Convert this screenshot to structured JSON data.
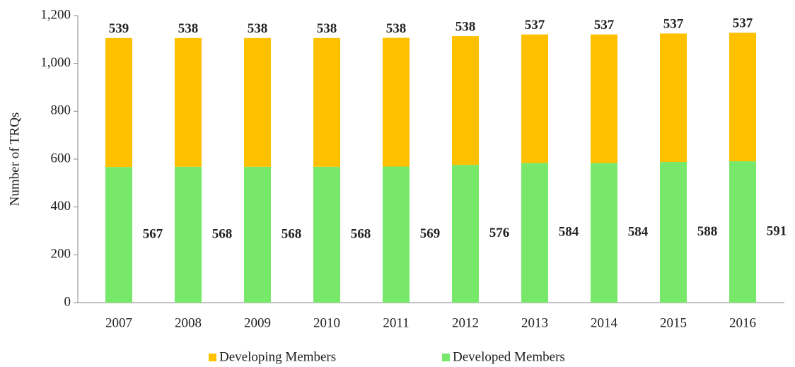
{
  "chart_data": {
    "type": "stacked_bar",
    "y_label": "Number of TRQs",
    "categories": [
      "2007",
      "2008",
      "2009",
      "2010",
      "2011",
      "2012",
      "2013",
      "2014",
      "2015",
      "2016"
    ],
    "series": [
      {
        "name": "Developed Members",
        "color": "#78e86b",
        "values": [
          567,
          568,
          568,
          568,
          569,
          576,
          584,
          584,
          588,
          591
        ]
      },
      {
        "name": "Developing Members",
        "color": "#ffc000",
        "values": [
          539,
          538,
          538,
          538,
          538,
          538,
          537,
          537,
          537,
          537
        ]
      }
    ],
    "ylim": [
      0,
      1200
    ],
    "yticks": [
      0,
      200,
      400,
      600,
      800,
      {
        "value": 1000,
        "label": "1,000"
      },
      {
        "value": 1200,
        "label": "1,200"
      }
    ],
    "legend": "bottom"
  }
}
